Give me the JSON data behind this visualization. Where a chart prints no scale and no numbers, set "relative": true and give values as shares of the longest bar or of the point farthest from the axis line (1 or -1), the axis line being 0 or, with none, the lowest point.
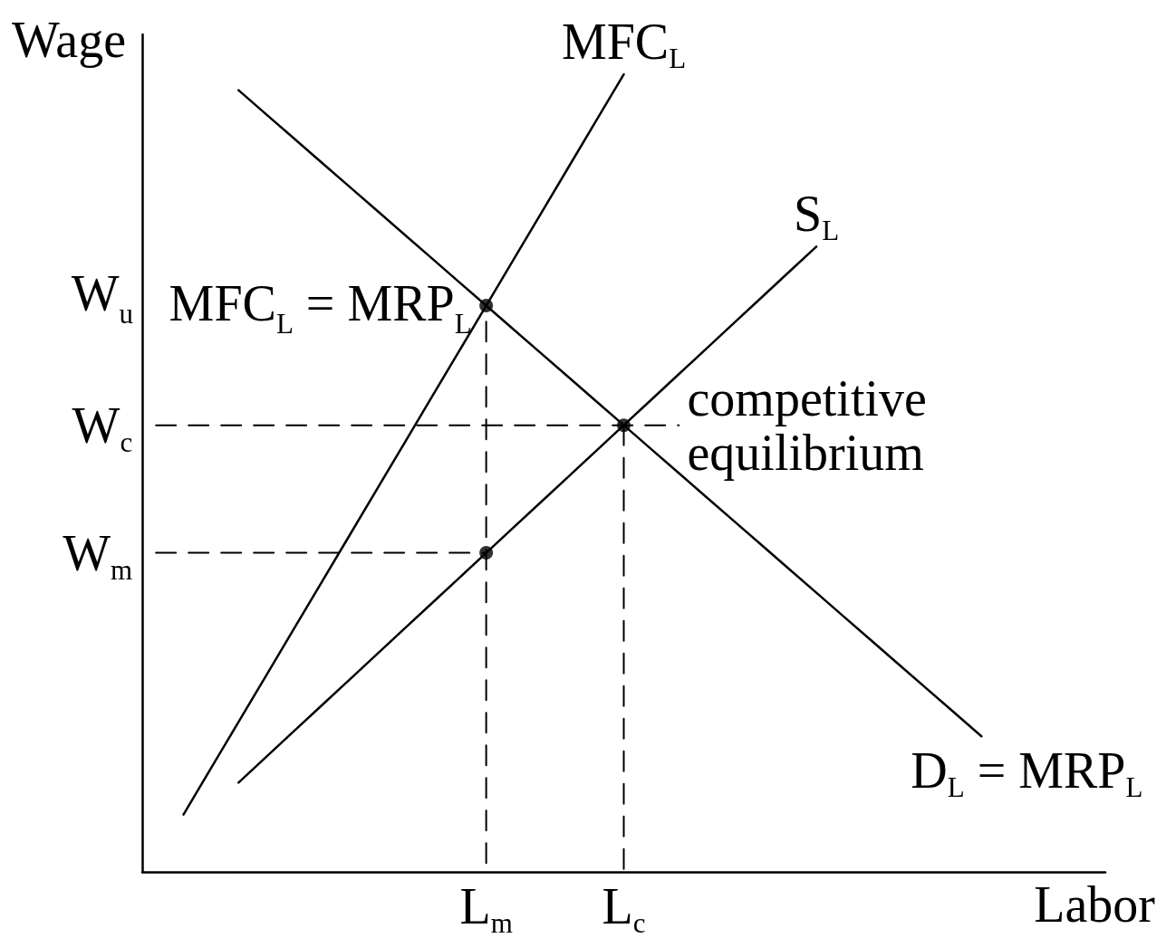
{
  "chart_data": {
    "type": "line",
    "xlabel": "Labor",
    "ylabel": "Wage",
    "relative": true,
    "grid": false,
    "legend": false,
    "ylim": [
      0,
      1.05
    ],
    "categories": [
      null,
      null,
      null,
      null,
      null,
      null,
      null,
      null,
      null,
      null,
      null,
      null,
      "L$_{m}$",
      null,
      null,
      null,
      null,
      "L$_{c}$",
      null,
      null,
      null,
      null,
      null,
      null,
      null,
      null,
      null,
      null,
      null,
      null,
      null,
      null,
      null,
      null,
      null
    ],
    "series": [
      {
        "name": "MFC$_{L}$",
        "color": "#000000",
        "values": [
          null,
          0.072,
          0.13,
          0.188,
          0.246,
          0.304,
          0.362,
          0.42,
          0.478,
          0.536,
          0.594,
          0.652,
          0.71,
          0.768,
          0.826,
          0.884,
          0.942,
          1,
          null,
          null,
          null,
          null,
          null,
          null,
          null,
          null,
          null,
          null,
          null,
          null,
          null,
          null,
          null,
          null,
          null
        ]
      },
      {
        "name": "S$_{L}$",
        "color": "#000000",
        "values": [
          null,
          null,
          null,
          0.112,
          0.144,
          0.176,
          0.208,
          0.24,
          0.272,
          0.304,
          0.336,
          0.368,
          0.4,
          0.432,
          0.464,
          0.496,
          0.528,
          0.56,
          0.592,
          0.624,
          0.656,
          0.688,
          0.72,
          0.752,
          0.784,
          null,
          null,
          null,
          null,
          null,
          null,
          null,
          null,
          null,
          null
        ]
      },
      {
        "name": "D$_{L}$ = MRP$_{L}$",
        "color": "#000000",
        "values": [
          null,
          null,
          null,
          0.98,
          0.95,
          0.92,
          0.89,
          0.86,
          0.83,
          0.8,
          0.77,
          0.74,
          0.71,
          0.68,
          0.65,
          0.62,
          0.59,
          0.56,
          0.53,
          0.5,
          0.47,
          0.44,
          0.41,
          0.38,
          0.35,
          0.32,
          0.29,
          0.26,
          0.23,
          0.2,
          0.17,
          null,
          null,
          null,
          null
        ]
      },
      {
        "name": "W$_{m}$",
        "line_style": "dashed",
        "color": "#000000",
        "values": [
          0.4,
          0.4,
          0.4,
          0.4,
          0.4,
          0.4,
          0.4,
          0.4,
          0.4,
          0.4,
          0.4,
          0.4,
          0.4,
          null,
          null,
          null,
          null,
          null,
          null,
          null,
          null,
          null,
          null,
          null,
          null,
          null,
          null,
          null,
          null,
          null,
          null,
          null,
          null,
          null,
          null
        ]
      },
      {
        "name": "W$_{c}$",
        "line_style": "dashed",
        "color": "#000000",
        "values": [
          0.56,
          0.56,
          0.56,
          0.56,
          0.56,
          0.56,
          0.56,
          0.56,
          0.56,
          0.56,
          0.56,
          0.56,
          0.56,
          0.56,
          0.56,
          0.56,
          0.56,
          0.56,
          0.56,
          0.56,
          null,
          null,
          null,
          null,
          null,
          null,
          null,
          null,
          null,
          null,
          null,
          null,
          null,
          null,
          null
        ]
      },
      {
        "line_style": "dashed",
        "color": "#000000",
        "x": [
          "L$_{m}$",
          "L$_{m}$"
        ],
        "values": [
          0.69,
          0
        ]
      },
      {
        "line_style": "dashed",
        "color": "#000000",
        "x": [
          "L$_{c}$",
          "L$_{c}$"
        ],
        "values": [
          0.56,
          0
        ]
      },
      {
        "type": "scatter",
        "marker": "circle",
        "color": "#000000",
        "x": [
          "L$_{m}$",
          "L$_{c}$",
          "L$_{m}$"
        ],
        "values": [
          0.71,
          0.56,
          0.4
        ]
      }
    ],
    "annotations": [
      {
        "text": "MFC$_{L}$ = MRP$_{L}$",
        "x": "L$_{m}$",
        "y": 0.71
      },
      {
        "text": "competitive equilibrium",
        "x": "L$_{c}$",
        "y": 0.56
      },
      "W$_{u}$"
    ]
  }
}
